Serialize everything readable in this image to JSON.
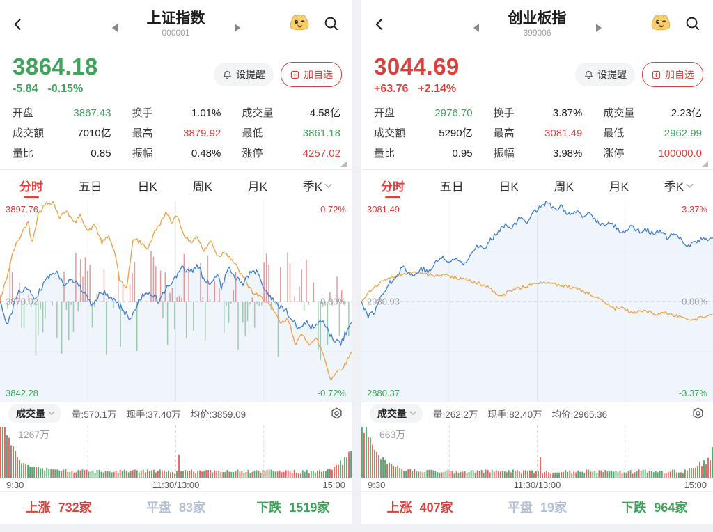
{
  "panels": [
    {
      "header": {
        "title": "上证指数",
        "code": "000001"
      },
      "quote": {
        "price": "3864.18",
        "change": "-5.84",
        "change_pct": "-0.15%",
        "clr": "green"
      },
      "buttons": {
        "alert": "设提醒",
        "watch": "加自选"
      },
      "stats": [
        {
          "label": "开盘",
          "value": "3867.43",
          "clr": "green"
        },
        {
          "label": "换手",
          "value": "1.01%",
          "clr": "black"
        },
        {
          "label": "成交量",
          "value": "4.58亿",
          "clr": "black"
        },
        {
          "label": "成交额",
          "value": "7010亿",
          "clr": "black"
        },
        {
          "label": "最高",
          "value": "3879.92",
          "clr": "red"
        },
        {
          "label": "最低",
          "value": "3861.18",
          "clr": "green"
        },
        {
          "label": "量比",
          "value": "0.85",
          "clr": "black"
        },
        {
          "label": "振幅",
          "value": "0.48%",
          "clr": "black"
        },
        {
          "label": "涨停",
          "value": "4257.02",
          "clr": "red"
        }
      ],
      "tabs": [
        {
          "label": "分时"
        },
        {
          "label": "五日"
        },
        {
          "label": "日K"
        },
        {
          "label": "周K"
        },
        {
          "label": "月K"
        },
        {
          "label": "季K"
        }
      ],
      "volume_header": {
        "indicator": "成交量",
        "vol": "量:570.1万",
        "lots": "现手:37.40万",
        "avg": "均价:3859.09"
      },
      "breadth": [
        {
          "label": "上涨",
          "value": "732家",
          "clr": "red"
        },
        {
          "label": "平盘",
          "value": "83家",
          "clr": "flat"
        },
        {
          "label": "下跌",
          "value": "1519家",
          "clr": "green"
        }
      ]
    },
    {
      "header": {
        "title": "创业板指",
        "code": "399006"
      },
      "quote": {
        "price": "3044.69",
        "change": "+63.76",
        "change_pct": "+2.14%",
        "clr": "red"
      },
      "buttons": {
        "alert": "设提醒",
        "watch": "加自选"
      },
      "stats": [
        {
          "label": "开盘",
          "value": "2976.70",
          "clr": "green"
        },
        {
          "label": "换手",
          "value": "3.87%",
          "clr": "black"
        },
        {
          "label": "成交量",
          "value": "2.23亿",
          "clr": "black"
        },
        {
          "label": "成交额",
          "value": "5290亿",
          "clr": "black"
        },
        {
          "label": "最高",
          "value": "3081.49",
          "clr": "red"
        },
        {
          "label": "最低",
          "value": "2962.99",
          "clr": "green"
        },
        {
          "label": "量比",
          "value": "0.95",
          "clr": "black"
        },
        {
          "label": "振幅",
          "value": "3.98%",
          "clr": "black"
        },
        {
          "label": "涨停",
          "value": "100000.0",
          "clr": "red"
        }
      ],
      "tabs": [
        {
          "label": "分时"
        },
        {
          "label": "五日"
        },
        {
          "label": "日K"
        },
        {
          "label": "周K"
        },
        {
          "label": "月K"
        },
        {
          "label": "季K"
        }
      ],
      "volume_header": {
        "indicator": "成交量",
        "vol": "量:262.2万",
        "lots": "现手:82.40万",
        "avg": "均价:2965.36"
      },
      "breadth": [
        {
          "label": "上涨",
          "value": "407家",
          "clr": "red"
        },
        {
          "label": "平盘",
          "value": "19家",
          "clr": "flat"
        },
        {
          "label": "下跌",
          "value": "964家",
          "clr": "green"
        }
      ]
    }
  ],
  "chart_data": [
    {
      "type": "line",
      "title": "上证指数 分时",
      "x": [
        "9:30",
        "11:30/13:00",
        "15:00"
      ],
      "prev_close": 3870.02,
      "ylim_price": [
        3842.28,
        3897.76
      ],
      "pct_range": 0.72,
      "labels": {
        "high": "3897.76",
        "mid": "3870.02",
        "low": "3842.28",
        "high_pct": "0.72%",
        "mid_pct": "0.00%",
        "low_pct": "-0.72%"
      },
      "seed": 41,
      "series": [
        {
          "name": "price",
          "color": "#3f7fd0",
          "jitter": 0.022,
          "anchors": [
            [
              0,
              0
            ],
            [
              0.02,
              -0.18
            ],
            [
              0.05,
              0.06
            ],
            [
              0.08,
              0.1
            ],
            [
              0.1,
              0.02
            ],
            [
              0.13,
              0.16
            ],
            [
              0.16,
              0.22
            ],
            [
              0.18,
              0.12
            ],
            [
              0.2,
              0.17
            ],
            [
              0.23,
              0.1
            ],
            [
              0.26,
              -0.03
            ],
            [
              0.29,
              0.07
            ],
            [
              0.32,
              0.02
            ],
            [
              0.35,
              -0.06
            ],
            [
              0.37,
              -0.13
            ],
            [
              0.4,
              0.03
            ],
            [
              0.43,
              0.06
            ],
            [
              0.45,
              0
            ],
            [
              0.48,
              0.12
            ],
            [
              0.5,
              0.17
            ],
            [
              0.52,
              0.25
            ],
            [
              0.54,
              0.2
            ],
            [
              0.56,
              0.26
            ],
            [
              0.58,
              0.17
            ],
            [
              0.6,
              0.13
            ],
            [
              0.62,
              0.19
            ],
            [
              0.63,
              0.1
            ],
            [
              0.65,
              0.26
            ],
            [
              0.67,
              0.17
            ],
            [
              0.69,
              0.13
            ],
            [
              0.71,
              0.2
            ],
            [
              0.73,
              0.22
            ],
            [
              0.75,
              0.1
            ],
            [
              0.77,
              0.02
            ],
            [
              0.79,
              -0.03
            ],
            [
              0.81,
              -0.06
            ],
            [
              0.83,
              -0.12
            ],
            [
              0.85,
              -0.2
            ],
            [
              0.87,
              -0.15
            ],
            [
              0.89,
              -0.19
            ],
            [
              0.91,
              -0.13
            ],
            [
              0.93,
              -0.19
            ],
            [
              0.95,
              -0.29
            ],
            [
              0.97,
              -0.3
            ],
            [
              0.98,
              -0.24
            ],
            [
              1,
              -0.15
            ]
          ]
        },
        {
          "name": "avg",
          "color": "#efa044",
          "jitter": 0.016,
          "anchors": [
            [
              0,
              0
            ],
            [
              0.02,
              0.18
            ],
            [
              0.04,
              0.38
            ],
            [
              0.06,
              0.48
            ],
            [
              0.08,
              0.58
            ],
            [
              0.09,
              0.42
            ],
            [
              0.11,
              0.64
            ],
            [
              0.13,
              0.7
            ],
            [
              0.15,
              0.72
            ],
            [
              0.17,
              0.6
            ],
            [
              0.19,
              0.66
            ],
            [
              0.21,
              0.56
            ],
            [
              0.23,
              0.62
            ],
            [
              0.25,
              0.5
            ],
            [
              0.27,
              0.55
            ],
            [
              0.29,
              0.42
            ],
            [
              0.31,
              0.47
            ],
            [
              0.33,
              0.32
            ],
            [
              0.34,
              0.14
            ],
            [
              0.36,
              0.1
            ],
            [
              0.38,
              0.46
            ],
            [
              0.4,
              0.42
            ],
            [
              0.42,
              0.38
            ],
            [
              0.44,
              0.5
            ],
            [
              0.46,
              0.58
            ],
            [
              0.47,
              0.64
            ],
            [
              0.49,
              0.56
            ],
            [
              0.5,
              0.64
            ],
            [
              0.52,
              0.5
            ],
            [
              0.54,
              0.42
            ],
            [
              0.56,
              0.47
            ],
            [
              0.58,
              0.36
            ],
            [
              0.6,
              0.44
            ],
            [
              0.62,
              0.32
            ],
            [
              0.64,
              0.36
            ],
            [
              0.66,
              0.3
            ],
            [
              0.68,
              0.22
            ],
            [
              0.7,
              0.14
            ],
            [
              0.72,
              0.06
            ],
            [
              0.74,
              0.03
            ],
            [
              0.76,
              0
            ],
            [
              0.78,
              -0.08
            ],
            [
              0.8,
              -0.16
            ],
            [
              0.82,
              -0.13
            ],
            [
              0.84,
              -0.3
            ],
            [
              0.86,
              -0.24
            ],
            [
              0.88,
              -0.3
            ],
            [
              0.9,
              -0.27
            ],
            [
              0.92,
              -0.38
            ],
            [
              0.94,
              -0.56
            ],
            [
              0.96,
              -0.5
            ],
            [
              0.98,
              -0.46
            ],
            [
              1,
              -0.36
            ]
          ]
        }
      ],
      "mid_bars": {
        "seed": 13,
        "count": 150,
        "max": 0.52,
        "green_bias": 0.5
      },
      "volume": {
        "seed": 9,
        "count": 168,
        "max_label": "1267万",
        "open_spike": 1.0,
        "noon_spike": 0.3,
        "end_rise": 0.32,
        "last_bar": 0.52,
        "first_color": "red"
      }
    },
    {
      "type": "line",
      "title": "创业板指 分时",
      "x": [
        "9:30",
        "11:30/13:00",
        "15:00"
      ],
      "prev_close": 2980.93,
      "ylim_price": [
        2880.37,
        3081.49
      ],
      "pct_range": 3.37,
      "labels": {
        "high": "3081.49",
        "mid": "2980.93",
        "low": "2880.37",
        "high_pct": "3.37%",
        "mid_pct": "0.00%",
        "low_pct": "-3.37%"
      },
      "seed": 77,
      "series": [
        {
          "name": "price",
          "color": "#3f7fd0",
          "jitter": 0.09,
          "anchors": [
            [
              0,
              0
            ],
            [
              0.02,
              -0.5
            ],
            [
              0.04,
              -0.3
            ],
            [
              0.06,
              0.3
            ],
            [
              0.08,
              0.6
            ],
            [
              0.1,
              0.9
            ],
            [
              0.12,
              1.2
            ],
            [
              0.13,
              1
            ],
            [
              0.15,
              0.85
            ],
            [
              0.17,
              1.15
            ],
            [
              0.19,
              0.95
            ],
            [
              0.21,
              1.3
            ],
            [
              0.23,
              1.5
            ],
            [
              0.25,
              1.3
            ],
            [
              0.27,
              1.45
            ],
            [
              0.29,
              1.25
            ],
            [
              0.31,
              1.6
            ],
            [
              0.33,
              1.9
            ],
            [
              0.35,
              1.75
            ],
            [
              0.37,
              2.1
            ],
            [
              0.39,
              2.4
            ],
            [
              0.41,
              2.6
            ],
            [
              0.43,
              2.5
            ],
            [
              0.45,
              2.8
            ],
            [
              0.47,
              2.7
            ],
            [
              0.49,
              3
            ],
            [
              0.51,
              3.2
            ],
            [
              0.53,
              3.37
            ],
            [
              0.55,
              3.05
            ],
            [
              0.57,
              3.2
            ],
            [
              0.59,
              2.9
            ],
            [
              0.61,
              3
            ],
            [
              0.63,
              2.85
            ],
            [
              0.65,
              2.95
            ],
            [
              0.67,
              2.7
            ],
            [
              0.69,
              2.55
            ],
            [
              0.71,
              2.65
            ],
            [
              0.73,
              2.4
            ],
            [
              0.75,
              2.35
            ],
            [
              0.77,
              2.55
            ],
            [
              0.79,
              2.35
            ],
            [
              0.81,
              2.45
            ],
            [
              0.83,
              2.25
            ],
            [
              0.85,
              2.35
            ],
            [
              0.87,
              2.15
            ],
            [
              0.89,
              2.25
            ],
            [
              0.91,
              2.05
            ],
            [
              0.93,
              1.9
            ],
            [
              0.95,
              2
            ],
            [
              0.97,
              2.1
            ],
            [
              1,
              2.14
            ]
          ]
        },
        {
          "name": "avg",
          "color": "#efa044",
          "jitter": 0.05,
          "anchors": [
            [
              0,
              0
            ],
            [
              0.03,
              0.4
            ],
            [
              0.06,
              0.7
            ],
            [
              0.09,
              0.82
            ],
            [
              0.12,
              0.9
            ],
            [
              0.15,
              1
            ],
            [
              0.18,
              0.95
            ],
            [
              0.21,
              0.85
            ],
            [
              0.24,
              0.9
            ],
            [
              0.27,
              0.8
            ],
            [
              0.3,
              0.72
            ],
            [
              0.33,
              0.62
            ],
            [
              0.36,
              0.5
            ],
            [
              0.38,
              0.3
            ],
            [
              0.4,
              0.15
            ],
            [
              0.42,
              0.35
            ],
            [
              0.44,
              0.42
            ],
            [
              0.46,
              0.48
            ],
            [
              0.48,
              0.55
            ],
            [
              0.5,
              0.62
            ],
            [
              0.52,
              0.66
            ],
            [
              0.54,
              0.6
            ],
            [
              0.56,
              0.56
            ],
            [
              0.58,
              0.52
            ],
            [
              0.6,
              0.46
            ],
            [
              0.62,
              0.4
            ],
            [
              0.64,
              0.3
            ],
            [
              0.66,
              0.2
            ],
            [
              0.68,
              0.1
            ],
            [
              0.7,
              -0.1
            ],
            [
              0.72,
              -0.25
            ],
            [
              0.74,
              -0.2
            ],
            [
              0.76,
              -0.32
            ],
            [
              0.78,
              -0.36
            ],
            [
              0.8,
              -0.3
            ],
            [
              0.82,
              -0.36
            ],
            [
              0.84,
              -0.42
            ],
            [
              0.86,
              -0.36
            ],
            [
              0.88,
              -0.42
            ],
            [
              0.9,
              -0.5
            ],
            [
              0.92,
              -0.56
            ],
            [
              0.94,
              -0.62
            ],
            [
              0.96,
              -0.56
            ],
            [
              0.98,
              -0.52
            ],
            [
              1,
              -0.45
            ]
          ]
        }
      ],
      "mid_bars": null,
      "volume": {
        "seed": 23,
        "count": 168,
        "max_label": "663万",
        "open_spike": 1.0,
        "noon_spike": 0.26,
        "end_rise": 0.3,
        "last_bar": 0.6,
        "first_color": "green"
      }
    }
  ]
}
